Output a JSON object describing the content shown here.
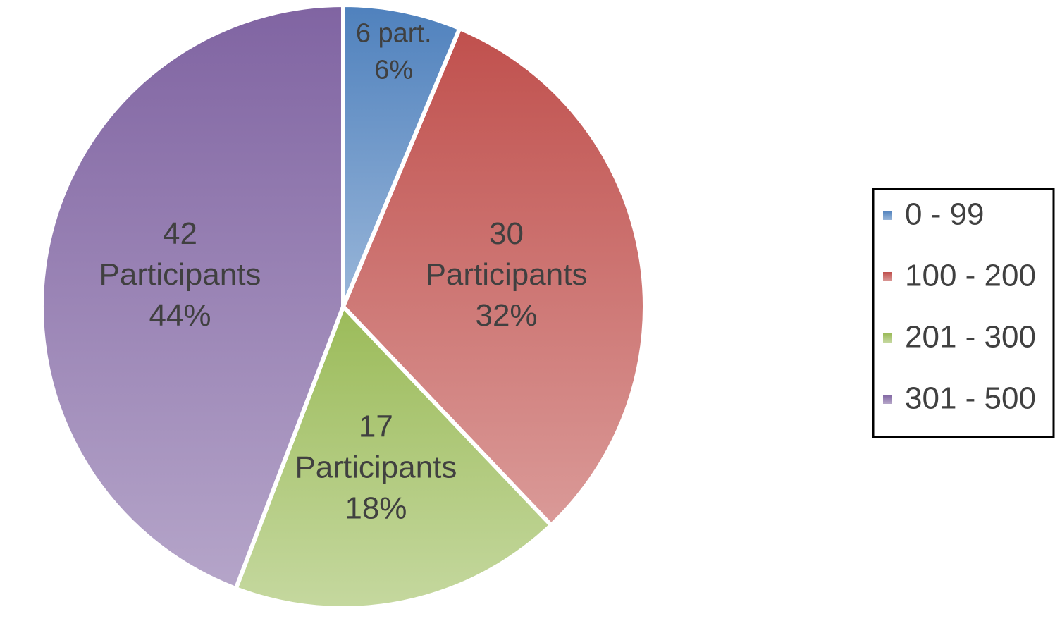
{
  "chart_data": {
    "type": "pie",
    "categories": [
      "0 - 99",
      "100 - 200",
      "201 - 300",
      "301 - 500"
    ],
    "values": [
      6,
      30,
      17,
      42
    ],
    "value_labels": [
      [
        "6 part."
      ],
      [
        "30",
        "Participants"
      ],
      [
        "17",
        "Participants"
      ],
      [
        "42",
        "Participants"
      ]
    ],
    "percents": [
      6,
      32,
      18,
      44
    ],
    "percent_labels": [
      "6%",
      "32%",
      "18%",
      "44%"
    ],
    "colors": [
      "#4f81bd",
      "#c0504d",
      "#9bbb59",
      "#8064a2"
    ],
    "legend": "right"
  }
}
